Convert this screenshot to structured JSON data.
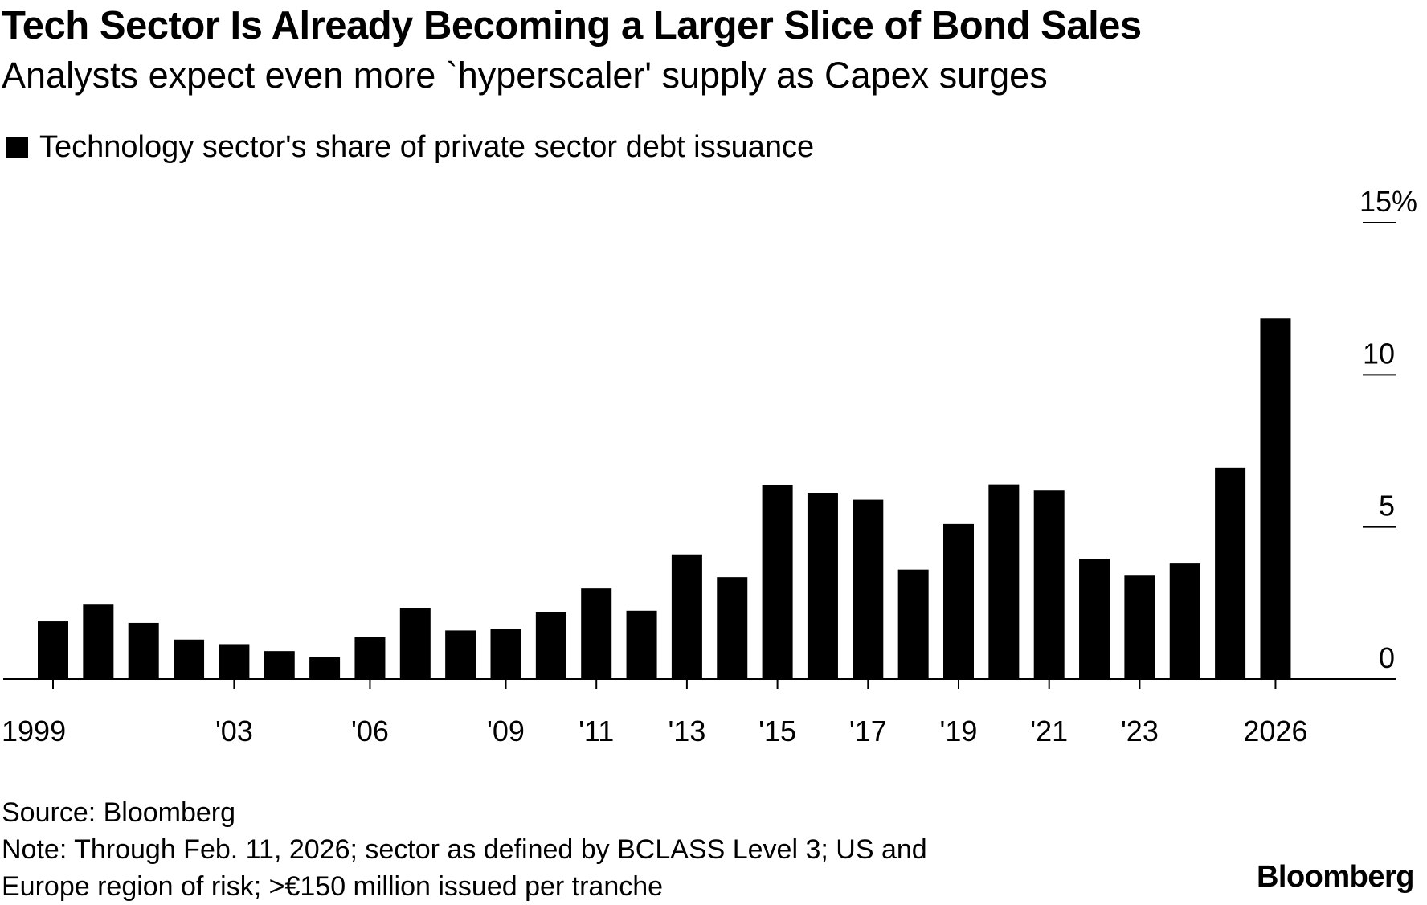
{
  "chart_data": {
    "type": "bar",
    "title": "Tech Sector Is Already Becoming a Larger Slice of Bond Sales",
    "subtitle": "Analysts expect even more `hyperscaler' supply as Capex surges",
    "series": [
      {
        "name": "Technology sector's share of private sector debt issuance",
        "color": "#000000",
        "values": [
          1.9,
          2.45,
          1.85,
          1.3,
          1.15,
          0.92,
          0.72,
          1.38,
          2.35,
          1.6,
          1.65,
          2.2,
          2.98,
          2.25,
          4.1,
          3.35,
          6.38,
          6.1,
          5.9,
          3.6,
          5.1,
          6.4,
          6.2,
          3.95,
          3.4,
          3.8,
          6.95,
          11.85
        ]
      }
    ],
    "categories": [
      "1999",
      "2000",
      "2001",
      "2002",
      "2003",
      "2004",
      "2005",
      "2006",
      "2007",
      "2008",
      "2009",
      "2010",
      "2011",
      "2012",
      "2013",
      "2014",
      "2015",
      "2016",
      "2017",
      "2018",
      "2019",
      "2020",
      "2021",
      "2022",
      "2023",
      "2024",
      "2025",
      "2026"
    ],
    "x_tick_labels": [
      {
        "category": "1999",
        "label": "1999"
      },
      {
        "category": "2003",
        "label": "'03"
      },
      {
        "category": "2006",
        "label": "'06"
      },
      {
        "category": "2009",
        "label": "'09"
      },
      {
        "category": "2011",
        "label": "'11"
      },
      {
        "category": "2013",
        "label": "'13"
      },
      {
        "category": "2015",
        "label": "'15"
      },
      {
        "category": "2017",
        "label": "'17"
      },
      {
        "category": "2019",
        "label": "'19"
      },
      {
        "category": "2021",
        "label": "'21"
      },
      {
        "category": "2023",
        "label": "'23"
      },
      {
        "category": "2026",
        "label": "2026"
      }
    ],
    "y_ticks": [
      {
        "value": 0,
        "label": "0"
      },
      {
        "value": 5,
        "label": "5"
      },
      {
        "value": 10,
        "label": "10"
      },
      {
        "value": 15,
        "label": "15%"
      }
    ],
    "ylim": [
      0,
      15
    ],
    "xlabel": "",
    "ylabel": "",
    "y_axis_side": "right",
    "grid": false,
    "legend_position": "top-left"
  },
  "footer": {
    "source": "Source: Bloomberg",
    "note_line1": "Note: Through Feb. 11, 2026; sector as defined by BCLASS Level 3; US and",
    "note_line2": "Europe region of risk; >€150 million issued per tranche",
    "brand": "Bloomberg"
  }
}
